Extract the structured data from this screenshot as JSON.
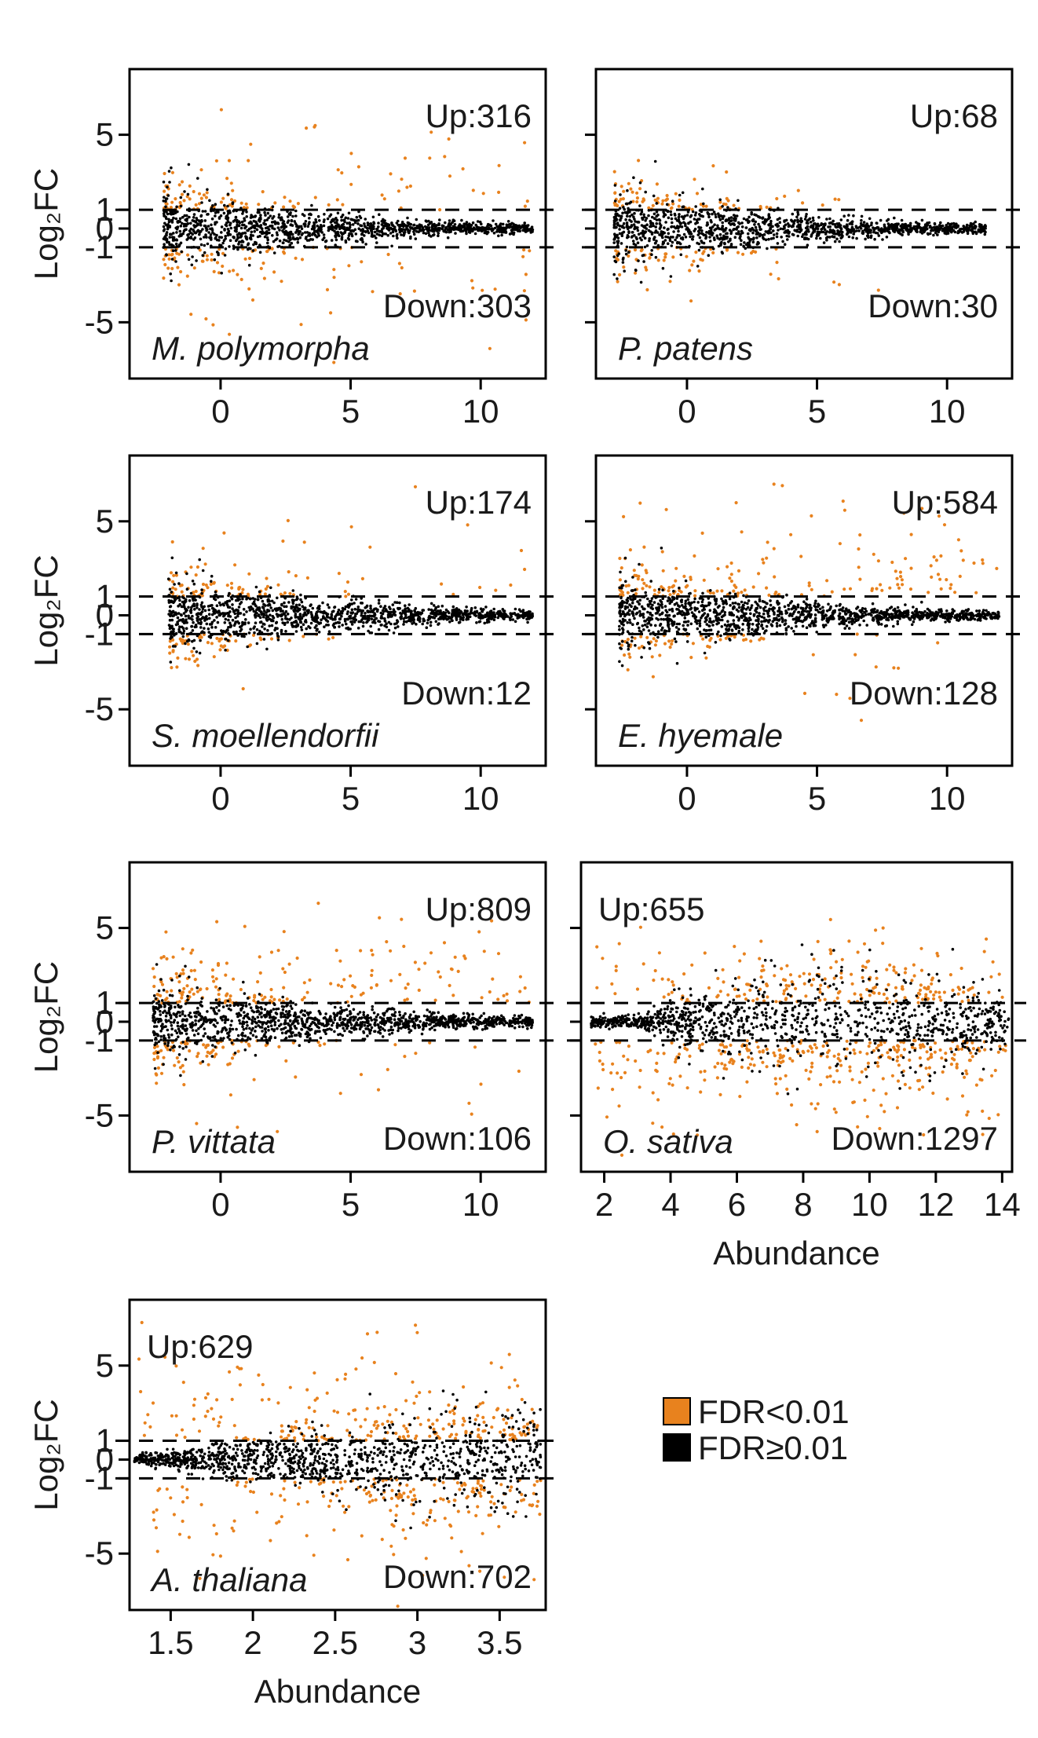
{
  "colors": {
    "significant": "#e8821e",
    "nonsignificant": "#000000",
    "guide": "#000000"
  },
  "legend": {
    "items": [
      {
        "label": "FDR<0.01",
        "color": "#e8821e"
      },
      {
        "label": "FDR≥0.01",
        "color": "#000000"
      }
    ]
  },
  "chart_data": [
    {
      "type": "scatter",
      "species": "M. polymorpha",
      "ylabel": "Log₂FC",
      "xlabel": "",
      "xlim": [
        -3.5,
        12.5
      ],
      "ylim": [
        -8,
        8.5
      ],
      "xticks": [
        0,
        5,
        10
      ],
      "yticks": [
        5,
        1,
        0,
        -1,
        -5
      ],
      "hlines": [
        1,
        -1
      ],
      "up": "Up:316",
      "down": "Down:303",
      "up_count": 316,
      "down_count": 303,
      "cloud": {
        "xmin": -2.2,
        "xmax": 12.0,
        "kind": "funnel"
      }
    },
    {
      "type": "scatter",
      "species": "P. patens",
      "ylabel": "",
      "xlabel": "",
      "xlim": [
        -3.5,
        12.5
      ],
      "ylim": [
        -8,
        8.5
      ],
      "xticks": [
        0,
        5,
        10
      ],
      "yticks": [
        5,
        1,
        0,
        -1,
        -5
      ],
      "hlines": [
        1,
        -1
      ],
      "up": "Up:68",
      "down": "Down:30",
      "up_count": 68,
      "down_count": 30,
      "cloud": {
        "xmin": -2.8,
        "xmax": 11.5,
        "kind": "funnel"
      }
    },
    {
      "type": "scatter",
      "species": "S. moellendorfii",
      "ylabel": "Log₂FC",
      "xlabel": "",
      "xlim": [
        -3.5,
        12.5
      ],
      "ylim": [
        -8,
        8.5
      ],
      "xticks": [
        0,
        5,
        10
      ],
      "yticks": [
        5,
        1,
        0,
        -1,
        -5
      ],
      "hlines": [
        1,
        -1
      ],
      "up": "Up:174",
      "down": "Down:12",
      "up_count": 174,
      "down_count": 12,
      "cloud": {
        "xmin": -2.0,
        "xmax": 12.0,
        "kind": "funnel"
      }
    },
    {
      "type": "scatter",
      "species": "E. hyemale",
      "ylabel": "",
      "xlabel": "",
      "xlim": [
        -3.5,
        12.5
      ],
      "ylim": [
        -8,
        8.5
      ],
      "xticks": [
        0,
        5,
        10
      ],
      "yticks": [
        5,
        1,
        0,
        -1,
        -5
      ],
      "hlines": [
        1,
        -1
      ],
      "up": "Up:584",
      "down": "Down:128",
      "up_count": 584,
      "down_count": 128,
      "cloud": {
        "xmin": -2.6,
        "xmax": 12.0,
        "kind": "funnel"
      }
    },
    {
      "type": "scatter",
      "species": "P. vittata",
      "ylabel": "Log₂FC",
      "xlabel": "",
      "xlim": [
        -3.5,
        12.5
      ],
      "ylim": [
        -8,
        8.5
      ],
      "xticks": [
        0,
        5,
        10
      ],
      "yticks": [
        5,
        1,
        0,
        -1,
        -5
      ],
      "hlines": [
        1,
        -1
      ],
      "up": "Up:809",
      "down": "Down:106",
      "up_count": 809,
      "down_count": 106,
      "cloud": {
        "xmin": -2.6,
        "xmax": 12.0,
        "kind": "funnel"
      }
    },
    {
      "type": "scatter",
      "species": "O. sativa",
      "ylabel": "",
      "xlabel": "Abundance",
      "xlim": [
        1.3,
        14.3
      ],
      "ylim": [
        -8,
        8.5
      ],
      "xticks": [
        2,
        4,
        6,
        8,
        10,
        12,
        14
      ],
      "yticks": [
        5,
        1,
        0,
        -1,
        -5
      ],
      "hlines": [
        1,
        -1
      ],
      "up": "Up:655",
      "down": "Down:1297",
      "up_count": 655,
      "down_count": 1297,
      "cloud": {
        "xmin": 1.6,
        "xmax": 14.2,
        "kind": "lens"
      }
    },
    {
      "type": "scatter",
      "species": "A. thaliana",
      "ylabel": "Log₂FC",
      "xlabel": "Abundance",
      "xlim": [
        1.25,
        3.78
      ],
      "ylim": [
        -8,
        8.5
      ],
      "xticks": [
        1.5,
        2,
        2.5,
        3,
        3.5
      ],
      "yticks": [
        5,
        1,
        0,
        -1,
        -5
      ],
      "hlines": [
        1,
        -1
      ],
      "up": "Up:629",
      "down": "Down:702",
      "up_count": 629,
      "down_count": 702,
      "cloud": {
        "xmin": 1.28,
        "xmax": 3.75,
        "kind": "wedge"
      }
    }
  ]
}
